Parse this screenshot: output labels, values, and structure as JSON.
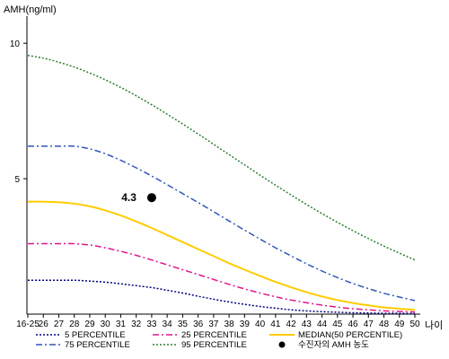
{
  "chart_data": {
    "type": "line",
    "ylabel": "AMH(ng/ml)",
    "xlabel": "나이",
    "ylim": [
      0,
      11
    ],
    "yticks": [
      5,
      10
    ],
    "categories": [
      "16-25",
      "26",
      "27",
      "28",
      "29",
      "30",
      "31",
      "32",
      "33",
      "34",
      "35",
      "36",
      "37",
      "38",
      "39",
      "40",
      "41",
      "42",
      "43",
      "44",
      "45",
      "46",
      "47",
      "48",
      "49",
      "50"
    ],
    "series": [
      {
        "name": "5 PERCENTILE",
        "color": "#000080",
        "dash": "2,2",
        "values": [
          1.25,
          1.25,
          1.25,
          1.25,
          1.22,
          1.18,
          1.12,
          1.05,
          0.98,
          0.88,
          0.78,
          0.66,
          0.55,
          0.45,
          0.36,
          0.28,
          0.22,
          0.16,
          0.12,
          0.09,
          0.07,
          0.05,
          0.04,
          0.03,
          0.03,
          0.02
        ]
      },
      {
        "name": "25 PERCENTILE",
        "color": "#e0178c",
        "dash": "7,3,2,3",
        "values": [
          2.6,
          2.6,
          2.6,
          2.6,
          2.55,
          2.45,
          2.32,
          2.17,
          2.0,
          1.82,
          1.64,
          1.46,
          1.28,
          1.1,
          0.93,
          0.78,
          0.64,
          0.52,
          0.42,
          0.33,
          0.26,
          0.2,
          0.16,
          0.12,
          0.1,
          0.08
        ]
      },
      {
        "name": "MEDIAN(50 PERCENTILE)",
        "color": "#ffcc00",
        "dash": "",
        "values": [
          4.15,
          4.15,
          4.13,
          4.08,
          3.98,
          3.83,
          3.64,
          3.42,
          3.18,
          2.92,
          2.66,
          2.4,
          2.14,
          1.88,
          1.64,
          1.41,
          1.19,
          0.99,
          0.81,
          0.65,
          0.52,
          0.41,
          0.32,
          0.25,
          0.2,
          0.16
        ]
      },
      {
        "name": "75 PERCENTILE",
        "color": "#3355bb",
        "dash": "7,3,2,3",
        "values": [
          6.2,
          6.2,
          6.2,
          6.2,
          6.1,
          5.92,
          5.68,
          5.4,
          5.1,
          4.78,
          4.45,
          4.12,
          3.78,
          3.44,
          3.1,
          2.77,
          2.45,
          2.15,
          1.86,
          1.59,
          1.35,
          1.13,
          0.94,
          0.77,
          0.63,
          0.5
        ]
      },
      {
        "name": "95 PERCENTILE",
        "color": "#2e7d32",
        "dash": "2,2",
        "values": [
          9.55,
          9.45,
          9.3,
          9.12,
          8.9,
          8.65,
          8.37,
          8.06,
          7.73,
          7.38,
          7.02,
          6.65,
          6.27,
          5.89,
          5.51,
          5.13,
          4.76,
          4.4,
          4.05,
          3.71,
          3.39,
          3.08,
          2.79,
          2.51,
          2.25,
          2.0
        ]
      }
    ],
    "annotation": {
      "name": "수진자의 AMH 농도",
      "x": "33",
      "y": 4.3,
      "label": "4.3",
      "color": "#000000"
    },
    "legend": [
      {
        "label": "5 PERCENTILE",
        "series": 0
      },
      {
        "label": "25 PERCENTILE",
        "series": 1
      },
      {
        "label": "MEDIAN(50 PERCENTILE)",
        "series": 2
      },
      {
        "label": "75 PERCENTILE",
        "series": 3
      },
      {
        "label": "95 PERCENTILE",
        "series": 4
      },
      {
        "label": "수진자의 AMH 농도",
        "marker": true
      }
    ],
    "legend_position": "bottom",
    "grid": false
  }
}
